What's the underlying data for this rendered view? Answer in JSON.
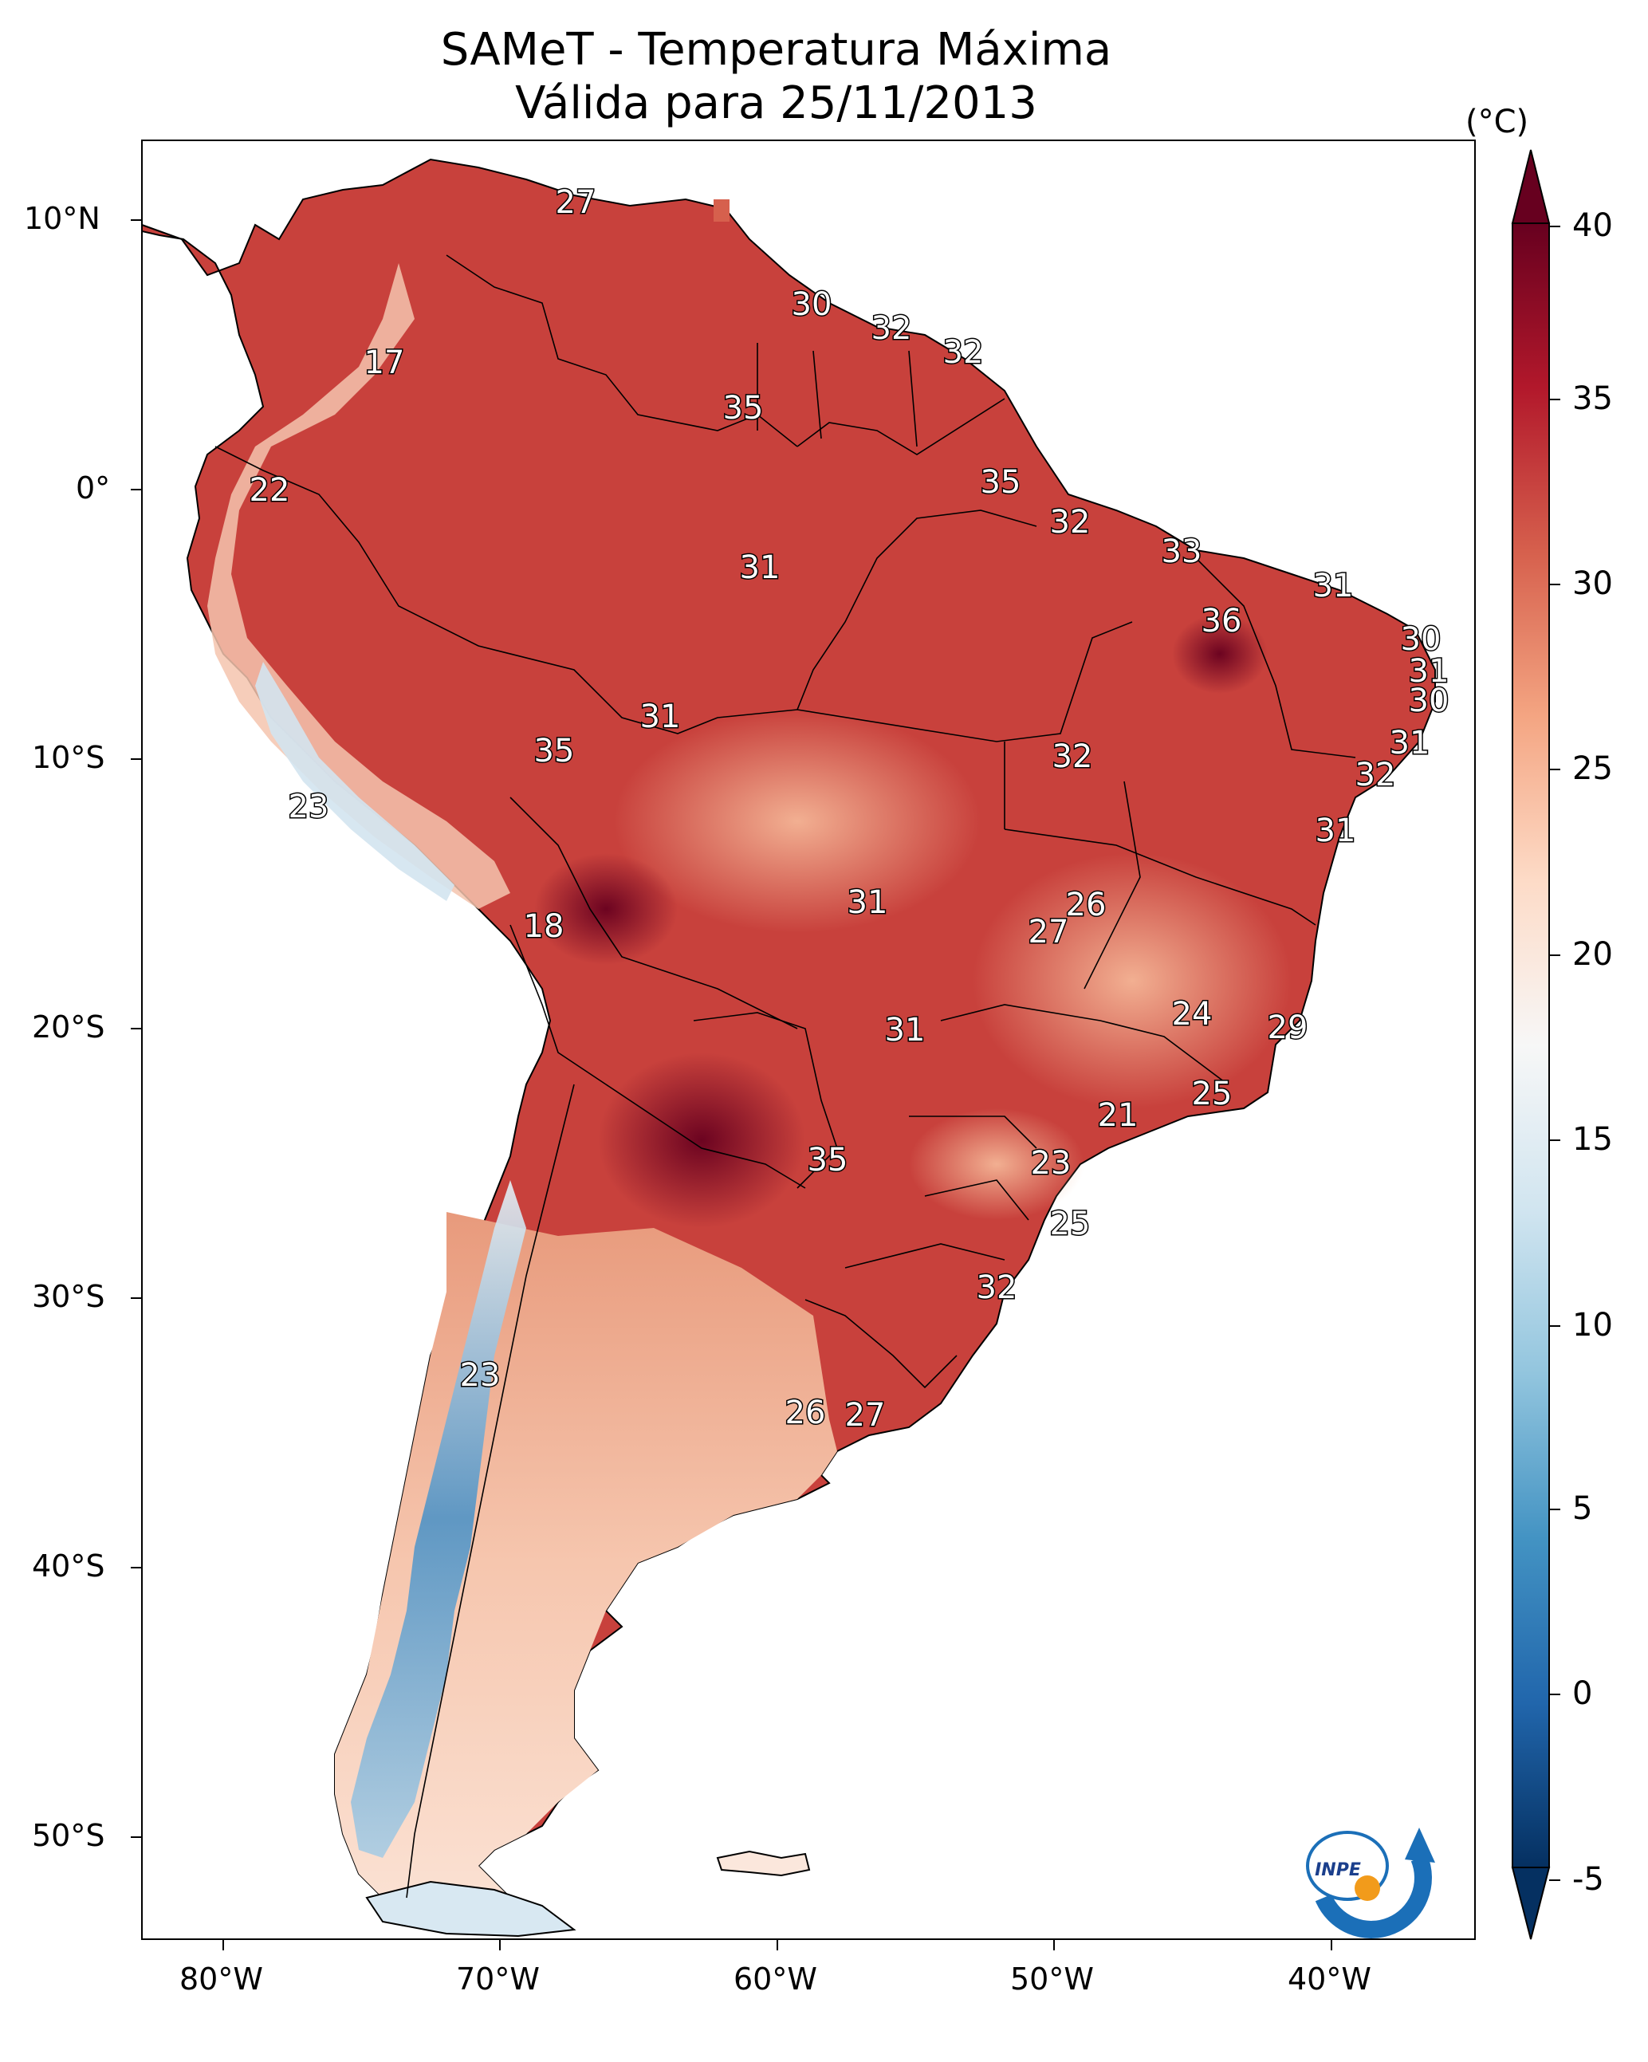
{
  "title": {
    "line1": "SAMeT - Temperatura Máxima",
    "line2": "Válida para 25/11/2013"
  },
  "axes": {
    "lon_labels": [
      "80°W",
      "70°W",
      "60°W",
      "50°W",
      "40°W"
    ],
    "lat_labels": [
      "10°N",
      "0°",
      "10°S",
      "20°S",
      "30°S",
      "40°S",
      "50°S"
    ]
  },
  "colorbar": {
    "unit": "(°C)",
    "ticks": [
      "40",
      "35",
      "30",
      "25",
      "20",
      "15",
      "10",
      "5",
      "0",
      "-5"
    ],
    "range": [
      -5,
      40
    ],
    "colors": [
      "#053061",
      "#2166ac",
      "#4393c3",
      "#92c5de",
      "#d1e5f0",
      "#f7f7f7",
      "#fddbc7",
      "#f4a582",
      "#d6604d",
      "#b2182b",
      "#67001f"
    ]
  },
  "values": [
    "27",
    "30",
    "32",
    "32",
    "17",
    "35",
    "22",
    "35",
    "32",
    "33",
    "31",
    "31",
    "36",
    "30",
    "31",
    "30",
    "31",
    "31",
    "35",
    "32",
    "32",
    "23",
    "31",
    "31",
    "18",
    "26",
    "27",
    "31",
    "24",
    "29",
    "21",
    "25",
    "35",
    "23",
    "25",
    "32",
    "23",
    "26",
    "27"
  ],
  "logo": {
    "text": "INPE"
  }
}
